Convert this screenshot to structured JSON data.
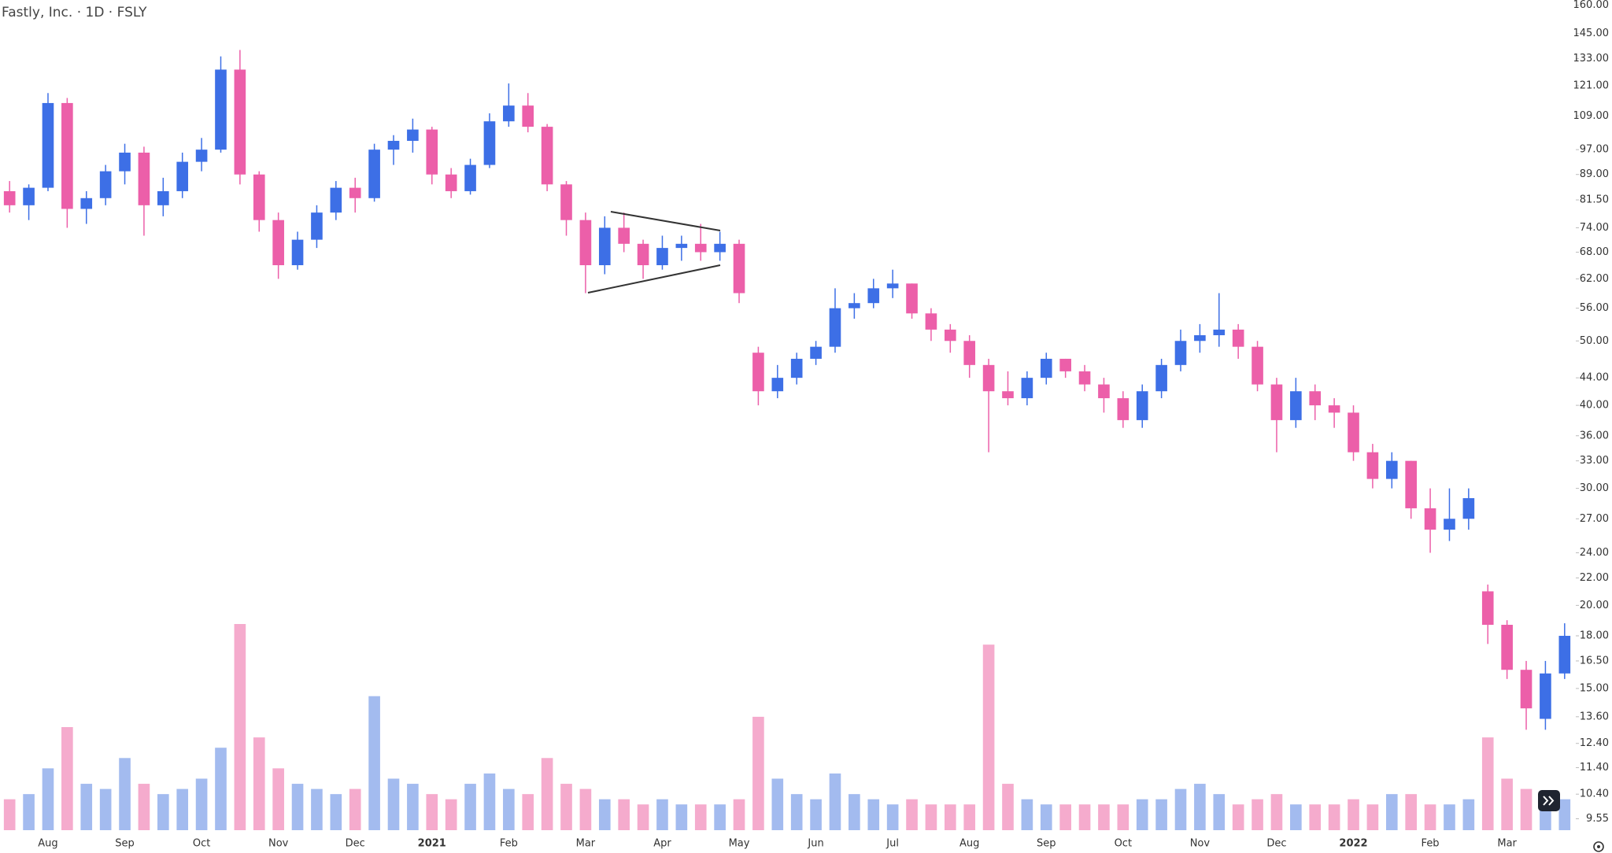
{
  "chart_data": {
    "type": "candlestick",
    "title": "Fastly, Inc. · 1D · FSLY",
    "categories": [
      null,
      null,
      "Aug",
      null,
      null,
      null,
      "Sep",
      null,
      null,
      null,
      "Oct",
      null,
      null,
      null,
      "Nov",
      null,
      null,
      null,
      "Dec",
      null,
      null,
      null,
      "2021",
      null,
      null,
      null,
      "Feb",
      null,
      null,
      null,
      "Mar",
      null,
      null,
      null,
      "Apr",
      null,
      null,
      null,
      "May",
      null,
      null,
      null,
      "Jun",
      null,
      null,
      null,
      "Jul",
      null,
      null,
      null,
      "Aug",
      null,
      null,
      null,
      "Sep",
      null,
      null,
      null,
      "Oct",
      null,
      null,
      null,
      "Nov",
      null,
      null,
      null,
      "Dec",
      null,
      null,
      null,
      "2022",
      null,
      null,
      null,
      "Feb",
      null,
      null,
      null,
      "Mar",
      null,
      null,
      null
    ],
    "open": [
      84,
      80,
      85,
      114,
      79,
      82,
      90,
      96,
      80,
      84,
      93,
      97,
      128,
      89,
      76,
      65,
      71,
      78,
      85,
      82,
      97,
      100,
      104,
      89,
      84,
      92,
      107,
      113,
      105,
      86,
      76,
      65,
      74,
      70,
      65,
      69,
      70,
      68,
      70,
      48,
      42,
      44,
      47,
      49,
      56,
      57,
      60,
      61,
      55,
      52,
      50,
      46,
      42,
      41,
      44,
      47,
      45,
      43,
      41,
      38,
      42,
      46,
      50,
      51,
      52,
      49,
      43,
      38,
      42,
      40,
      39,
      34,
      31,
      33,
      28,
      26,
      27,
      21,
      18.7,
      16,
      13.5,
      15.8
    ],
    "high": [
      87,
      86,
      118,
      116,
      84,
      92,
      99,
      98,
      88,
      96,
      101,
      134,
      137,
      90,
      78,
      73,
      80,
      87,
      88,
      99,
      102,
      108,
      105,
      91,
      94,
      110,
      122,
      118,
      106,
      87,
      78,
      77,
      78,
      71,
      72,
      72,
      75,
      73,
      71,
      49,
      46,
      48,
      50,
      60,
      59,
      62,
      64,
      61,
      56,
      53,
      51,
      47,
      45,
      45,
      48,
      47,
      46,
      44,
      42,
      43,
      47,
      52,
      53,
      59,
      53,
      50,
      44,
      44,
      43,
      41,
      40,
      35,
      34,
      33,
      30,
      30,
      30,
      21.5,
      19,
      16.5,
      16.5,
      18.8
    ],
    "low": [
      78,
      76,
      84,
      74,
      75,
      80,
      86,
      72,
      77,
      82,
      90,
      96,
      86,
      73,
      62,
      64,
      69,
      76,
      78,
      81,
      92,
      96,
      86,
      82,
      83,
      91,
      105,
      103,
      84,
      72,
      59,
      63,
      68,
      62,
      64,
      66,
      66,
      66,
      57,
      40,
      41,
      43,
      46,
      48,
      54,
      56,
      58,
      54,
      50,
      48,
      44,
      34,
      40,
      40,
      43,
      44,
      42,
      39,
      37,
      37,
      41,
      45,
      48,
      49,
      47,
      42,
      34,
      37,
      38,
      37,
      33,
      30,
      30,
      27,
      24,
      25,
      26,
      17.5,
      15.5,
      13,
      13,
      15.5
    ],
    "close": [
      80,
      85,
      114,
      79,
      82,
      90,
      96,
      80,
      84,
      93,
      97,
      128,
      89,
      76,
      65,
      71,
      78,
      85,
      82,
      97,
      100,
      104,
      89,
      84,
      92,
      107,
      113,
      105,
      86,
      76,
      65,
      74,
      70,
      65,
      69,
      70,
      68,
      70,
      59,
      42,
      44,
      47,
      49,
      56,
      57,
      60,
      61,
      55,
      52,
      50,
      46,
      42,
      41,
      44,
      47,
      45,
      43,
      41,
      38,
      42,
      46,
      50,
      51,
      52,
      49,
      43,
      38,
      42,
      40,
      39,
      34,
      31,
      33,
      28,
      26,
      27,
      29,
      18.7,
      16,
      14,
      15.8,
      18
    ],
    "volume": [
      6,
      7,
      12,
      20,
      9,
      8,
      14,
      9,
      7,
      8,
      10,
      16,
      40,
      18,
      12,
      9,
      8,
      7,
      8,
      26,
      10,
      9,
      7,
      6,
      9,
      11,
      8,
      7,
      14,
      9,
      8,
      6,
      6,
      5,
      6,
      5,
      5,
      5,
      6,
      22,
      10,
      7,
      6,
      11,
      7,
      6,
      5,
      6,
      5,
      5,
      5,
      36,
      9,
      6,
      5,
      5,
      5,
      5,
      5,
      6,
      6,
      8,
      9,
      7,
      5,
      6,
      7,
      5,
      5,
      5,
      6,
      5,
      7,
      7,
      5,
      5,
      6,
      18,
      10,
      8,
      7,
      6
    ],
    "volume_ylim": [
      0,
      40
    ],
    "up_color": "#3d6fe6",
    "down_color": "#ec5fa9",
    "volume_up_color": "#a3bbef",
    "volume_down_color": "#f5abcd",
    "log_scale": true,
    "ylim": [
      9.18,
      162.9
    ],
    "yticks": [
      {
        "value": 160,
        "label": "160.00"
      },
      {
        "value": 145,
        "label": "145.00"
      },
      {
        "value": 133,
        "label": "133.00"
      },
      {
        "value": 121,
        "label": "121.00"
      },
      {
        "value": 109,
        "label": "109.00"
      },
      {
        "value": 97,
        "label": "97.00"
      },
      {
        "value": 89,
        "label": "89.00"
      },
      {
        "value": 81.5,
        "label": "81.50"
      },
      {
        "value": 74,
        "label": "74.00"
      },
      {
        "value": 68,
        "label": "68.00"
      },
      {
        "value": 62,
        "label": "62.00"
      },
      {
        "value": 56,
        "label": "56.00"
      },
      {
        "value": 50,
        "label": "50.00"
      },
      {
        "value": 44,
        "label": "44.00"
      },
      {
        "value": 40,
        "label": "40.00"
      },
      {
        "value": 36,
        "label": "36.00"
      },
      {
        "value": 33,
        "label": "33.00"
      },
      {
        "value": 30,
        "label": "30.00"
      },
      {
        "value": 27,
        "label": "27.00"
      },
      {
        "value": 24,
        "label": "24.00"
      },
      {
        "value": 22,
        "label": "22.00"
      },
      {
        "value": 20,
        "label": "20.00"
      },
      {
        "value": 18,
        "label": "18.00"
      },
      {
        "value": 16.5,
        "label": "16.50"
      },
      {
        "value": 15,
        "label": "15.00"
      },
      {
        "value": 13.6,
        "label": "13.60"
      },
      {
        "value": 12.4,
        "label": "12.40"
      },
      {
        "value": 11.4,
        "label": "11.40"
      },
      {
        "value": 10.4,
        "label": "10.40"
      },
      {
        "value": 9.55,
        "label": "9.55"
      }
    ]
  }
}
